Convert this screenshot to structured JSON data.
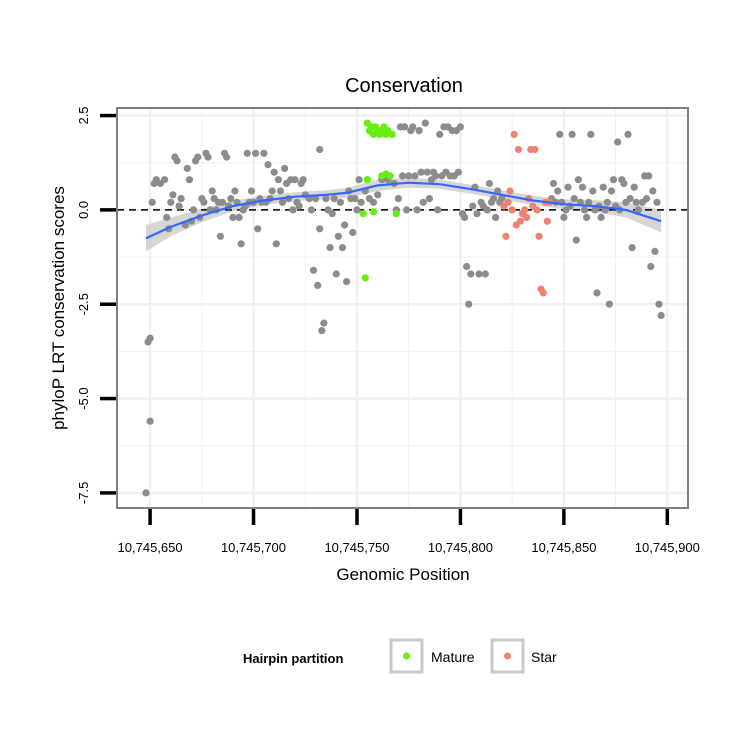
{
  "chart_data": {
    "type": "scatter",
    "title": "Conservation",
    "xlabel": "Genomic Position",
    "ylabel": "phyloP LRT conservation scores",
    "xlim": [
      10745634,
      10745910
    ],
    "ylim": [
      -7.9,
      2.7
    ],
    "x_ticks": [
      10745650,
      10745700,
      10745750,
      10745800,
      10745850,
      10745900
    ],
    "x_tick_labels": [
      "10,745,650",
      "10,745,700",
      "10,745,750",
      "10,745,800",
      "10,745,850",
      "10,745,900"
    ],
    "y_ticks": [
      2.5,
      0.0,
      -2.5,
      -5.0,
      -7.5
    ],
    "y_tick_labels": [
      "2.5",
      "0.0",
      "-2.5",
      "-5.0",
      "-7.5"
    ],
    "reference_line_y": 0,
    "grid": true,
    "legend": {
      "title": "Hairpin partition",
      "position": "bottom",
      "entries": [
        {
          "label": "Mature",
          "color": "#66ee11"
        },
        {
          "label": "Star",
          "color": "#f08070"
        }
      ]
    },
    "colors": {
      "other": "#8c8c8c",
      "mature": "#66ee11",
      "star": "#f08070",
      "smooth": "#3366ff",
      "band": "#c8c8c8",
      "panel_border": "#7f7f7f",
      "grid": "#f0f0f0"
    },
    "series": [
      {
        "name": "Other",
        "points": [
          [
            10745648,
            -7.5
          ],
          [
            10745649,
            -3.5
          ],
          [
            10745650,
            -5.6
          ],
          [
            10745650,
            -3.4
          ],
          [
            10745651,
            0.2
          ],
          [
            10745652,
            0.7
          ],
          [
            10745653,
            0.8
          ],
          [
            10745655,
            0.7
          ],
          [
            10745657,
            0.8
          ],
          [
            10745658,
            -0.2
          ],
          [
            10745659,
            -0.5
          ],
          [
            10745660,
            0.2
          ],
          [
            10745661,
            0.4
          ],
          [
            10745662,
            1.4
          ],
          [
            10745663,
            1.3
          ],
          [
            10745664,
            0.1
          ],
          [
            10745665,
            0.3
          ],
          [
            10745667,
            -0.4
          ],
          [
            10745668,
            1.1
          ],
          [
            10745669,
            0.8
          ],
          [
            10745670,
            -0.3
          ],
          [
            10745671,
            0.0
          ],
          [
            10745672,
            1.3
          ],
          [
            10745673,
            1.4
          ],
          [
            10745674,
            -0.2
          ],
          [
            10745675,
            0.3
          ],
          [
            10745676,
            0.2
          ],
          [
            10745677,
            1.5
          ],
          [
            10745678,
            1.4
          ],
          [
            10745679,
            0.0
          ],
          [
            10745680,
            0.5
          ],
          [
            10745681,
            0.3
          ],
          [
            10745682,
            0.0
          ],
          [
            10745683,
            0.2
          ],
          [
            10745684,
            -0.7
          ],
          [
            10745685,
            0.2
          ],
          [
            10745686,
            1.5
          ],
          [
            10745687,
            1.4
          ],
          [
            10745688,
            0.1
          ],
          [
            10745689,
            0.3
          ],
          [
            10745690,
            -0.2
          ],
          [
            10745691,
            0.5
          ],
          [
            10745692,
            0.2
          ],
          [
            10745693,
            -0.2
          ],
          [
            10745694,
            -0.9
          ],
          [
            10745695,
            0.0
          ],
          [
            10745696,
            0.1
          ],
          [
            10745697,
            1.5
          ],
          [
            10745698,
            0.2
          ],
          [
            10745699,
            0.5
          ],
          [
            10745700,
            0.2
          ],
          [
            10745701,
            1.5
          ],
          [
            10745702,
            -0.5
          ],
          [
            10745703,
            0.3
          ],
          [
            10745704,
            0.2
          ],
          [
            10745705,
            1.5
          ],
          [
            10745706,
            0.2
          ],
          [
            10745707,
            1.2
          ],
          [
            10745708,
            0.3
          ],
          [
            10745709,
            0.5
          ],
          [
            10745710,
            1.0
          ],
          [
            10745711,
            -0.9
          ],
          [
            10745712,
            0.8
          ],
          [
            10745713,
            0.5
          ],
          [
            10745714,
            0.2
          ],
          [
            10745715,
            1.1
          ],
          [
            10745716,
            0.7
          ],
          [
            10745717,
            0.3
          ],
          [
            10745718,
            0.8
          ],
          [
            10745719,
            0.0
          ],
          [
            10745720,
            0.8
          ],
          [
            10745721,
            0.2
          ],
          [
            10745722,
            0.1
          ],
          [
            10745723,
            0.7
          ],
          [
            10745724,
            0.8
          ],
          [
            10745725,
            0.4
          ],
          [
            10745727,
            0.3
          ],
          [
            10745728,
            0.0
          ],
          [
            10745729,
            -1.6
          ],
          [
            10745730,
            0.3
          ],
          [
            10745731,
            -2.0
          ],
          [
            10745732,
            1.6
          ],
          [
            10745732,
            -0.5
          ],
          [
            10745733,
            -3.2
          ],
          [
            10745734,
            -3.0
          ],
          [
            10745735,
            0.3
          ],
          [
            10745736,
            0.0
          ],
          [
            10745737,
            -1.0
          ],
          [
            10745738,
            -0.1
          ],
          [
            10745739,
            0.3
          ],
          [
            10745740,
            -1.7
          ],
          [
            10745741,
            -0.7
          ],
          [
            10745742,
            0.2
          ],
          [
            10745743,
            -1.0
          ],
          [
            10745744,
            -0.4
          ],
          [
            10745745,
            -1.9
          ],
          [
            10745746,
            0.5
          ],
          [
            10745747,
            0.3
          ],
          [
            10745748,
            -0.6
          ],
          [
            10745749,
            0.3
          ],
          [
            10745750,
            0.0
          ],
          [
            10745751,
            0.8
          ],
          [
            10745752,
            0.2
          ],
          [
            10745754,
            0.5
          ],
          [
            10745756,
            0.3
          ],
          [
            10745758,
            0.2
          ],
          [
            10745760,
            0.4
          ],
          [
            10745762,
            0.8
          ],
          [
            10745765,
            0.8
          ],
          [
            10745768,
            0.7
          ],
          [
            10745769,
            0.0
          ],
          [
            10745770,
            0.3
          ],
          [
            10745771,
            2.2
          ],
          [
            10745772,
            0.9
          ],
          [
            10745773,
            2.2
          ],
          [
            10745774,
            0.0
          ],
          [
            10745775,
            0.9
          ],
          [
            10745776,
            2.1
          ],
          [
            10745777,
            2.2
          ],
          [
            10745778,
            0.9
          ],
          [
            10745779,
            0.0
          ],
          [
            10745780,
            2.1
          ],
          [
            10745781,
            1.0
          ],
          [
            10745782,
            0.2
          ],
          [
            10745783,
            2.3
          ],
          [
            10745784,
            1.0
          ],
          [
            10745785,
            0.3
          ],
          [
            10745786,
            0.8
          ],
          [
            10745787,
            1.0
          ],
          [
            10745788,
            0.9
          ],
          [
            10745789,
            0.0
          ],
          [
            10745790,
            2.0
          ],
          [
            10745791,
            0.9
          ],
          [
            10745792,
            2.2
          ],
          [
            10745793,
            1.0
          ],
          [
            10745794,
            2.2
          ],
          [
            10745795,
            0.9
          ],
          [
            10745796,
            2.1
          ],
          [
            10745797,
            0.9
          ],
          [
            10745798,
            2.1
          ],
          [
            10745799,
            1.0
          ],
          [
            10745800,
            2.2
          ],
          [
            10745801,
            -0.1
          ],
          [
            10745802,
            -0.2
          ],
          [
            10745803,
            -1.5
          ],
          [
            10745804,
            -2.5
          ],
          [
            10745805,
            -1.7
          ],
          [
            10745806,
            0.1
          ],
          [
            10745807,
            0.6
          ],
          [
            10745808,
            -0.1
          ],
          [
            10745809,
            -1.7
          ],
          [
            10745810,
            0.2
          ],
          [
            10745811,
            0.1
          ],
          [
            10745812,
            -1.7
          ],
          [
            10745813,
            0.0
          ],
          [
            10745814,
            0.7
          ],
          [
            10745815,
            0.2
          ],
          [
            10745816,
            0.3
          ],
          [
            10745817,
            -0.2
          ],
          [
            10745818,
            0.5
          ],
          [
            10745819,
            0.2
          ],
          [
            10745820,
            0.3
          ],
          [
            10745844,
            0.3
          ],
          [
            10745845,
            0.7
          ],
          [
            10745846,
            0.2
          ],
          [
            10745847,
            0.5
          ],
          [
            10745848,
            2.0
          ],
          [
            10745849,
            0.2
          ],
          [
            10745850,
            -0.2
          ],
          [
            10745851,
            0.0
          ],
          [
            10745852,
            0.6
          ],
          [
            10745853,
            0.1
          ],
          [
            10745854,
            2.0
          ],
          [
            10745855,
            0.3
          ],
          [
            10745856,
            -0.8
          ],
          [
            10745857,
            0.8
          ],
          [
            10745858,
            0.2
          ],
          [
            10745859,
            0.6
          ],
          [
            10745860,
            0.0
          ],
          [
            10745861,
            -0.2
          ],
          [
            10745862,
            0.2
          ],
          [
            10745863,
            2.0
          ],
          [
            10745864,
            0.5
          ],
          [
            10745865,
            0.0
          ],
          [
            10745866,
            -2.2
          ],
          [
            10745867,
            0.1
          ],
          [
            10745868,
            -0.2
          ],
          [
            10745869,
            0.6
          ],
          [
            10745870,
            0.0
          ],
          [
            10745871,
            0.2
          ],
          [
            10745872,
            -2.5
          ],
          [
            10745873,
            0.5
          ],
          [
            10745874,
            0.8
          ],
          [
            10745875,
            0.1
          ],
          [
            10745876,
            1.8
          ],
          [
            10745877,
            0.0
          ],
          [
            10745878,
            0.8
          ],
          [
            10745879,
            0.7
          ],
          [
            10745880,
            0.2
          ],
          [
            10745881,
            2.0
          ],
          [
            10745882,
            0.3
          ],
          [
            10745883,
            -1.0
          ],
          [
            10745884,
            0.6
          ],
          [
            10745885,
            0.2
          ],
          [
            10745886,
            0.0
          ],
          [
            10745888,
            0.2
          ],
          [
            10745889,
            0.9
          ],
          [
            10745890,
            0.3
          ],
          [
            10745891,
            0.9
          ],
          [
            10745892,
            -1.5
          ],
          [
            10745893,
            0.5
          ],
          [
            10745894,
            -1.1
          ],
          [
            10745895,
            0.2
          ],
          [
            10745896,
            -2.5
          ],
          [
            10745897,
            -2.8
          ]
        ]
      },
      {
        "name": "Mature",
        "points": [
          [
            10745755,
            2.3
          ],
          [
            10745756,
            2.1
          ],
          [
            10745757,
            2.2
          ],
          [
            10745758,
            2.0
          ],
          [
            10745759,
            2.2
          ],
          [
            10745760,
            2.1
          ],
          [
            10745761,
            2.0
          ],
          [
            10745762,
            2.1
          ],
          [
            10745763,
            2.2
          ],
          [
            10745764,
            2.0
          ],
          [
            10745765,
            2.1
          ],
          [
            10745767,
            2.0
          ],
          [
            10745755,
            0.8
          ],
          [
            10745753,
            -0.1
          ],
          [
            10745758,
            -0.05
          ],
          [
            10745762,
            0.9
          ],
          [
            10745764,
            0.95
          ],
          [
            10745766,
            0.9
          ],
          [
            10745769,
            -0.1
          ],
          [
            10745754,
            -1.8
          ]
        ]
      },
      {
        "name": "Star",
        "points": [
          [
            10745821,
            0.1
          ],
          [
            10745822,
            -0.7
          ],
          [
            10745823,
            0.2
          ],
          [
            10745824,
            0.5
          ],
          [
            10745825,
            0.0
          ],
          [
            10745826,
            2.0
          ],
          [
            10745827,
            -0.4
          ],
          [
            10745828,
            1.6
          ],
          [
            10745829,
            -0.3
          ],
          [
            10745830,
            -0.1
          ],
          [
            10745831,
            0.0
          ],
          [
            10745832,
            -0.2
          ],
          [
            10745833,
            0.3
          ],
          [
            10745834,
            1.6
          ],
          [
            10745835,
            0.1
          ],
          [
            10745836,
            1.6
          ],
          [
            10745837,
            0.0
          ],
          [
            10745838,
            -0.7
          ],
          [
            10745839,
            -2.1
          ],
          [
            10745840,
            -2.2
          ],
          [
            10745841,
            0.2
          ],
          [
            10745842,
            -0.3
          ],
          [
            10745843,
            0.2
          ]
        ]
      }
    ],
    "smooth": {
      "x": [
        10745648,
        10745660,
        10745675,
        10745690,
        10745705,
        10745720,
        10745735,
        10745745,
        10745760,
        10745775,
        10745790,
        10745805,
        10745820,
        10745835,
        10745850,
        10745865,
        10745880,
        10745897
      ],
      "y": [
        -0.75,
        -0.45,
        -0.15,
        0.1,
        0.25,
        0.35,
        0.4,
        0.45,
        0.65,
        0.72,
        0.68,
        0.55,
        0.4,
        0.25,
        0.15,
        0.1,
        0.0,
        -0.3
      ],
      "se": [
        0.35,
        0.25,
        0.18,
        0.14,
        0.12,
        0.12,
        0.12,
        0.13,
        0.15,
        0.13,
        0.12,
        0.12,
        0.12,
        0.12,
        0.13,
        0.16,
        0.2,
        0.3
      ]
    }
  }
}
